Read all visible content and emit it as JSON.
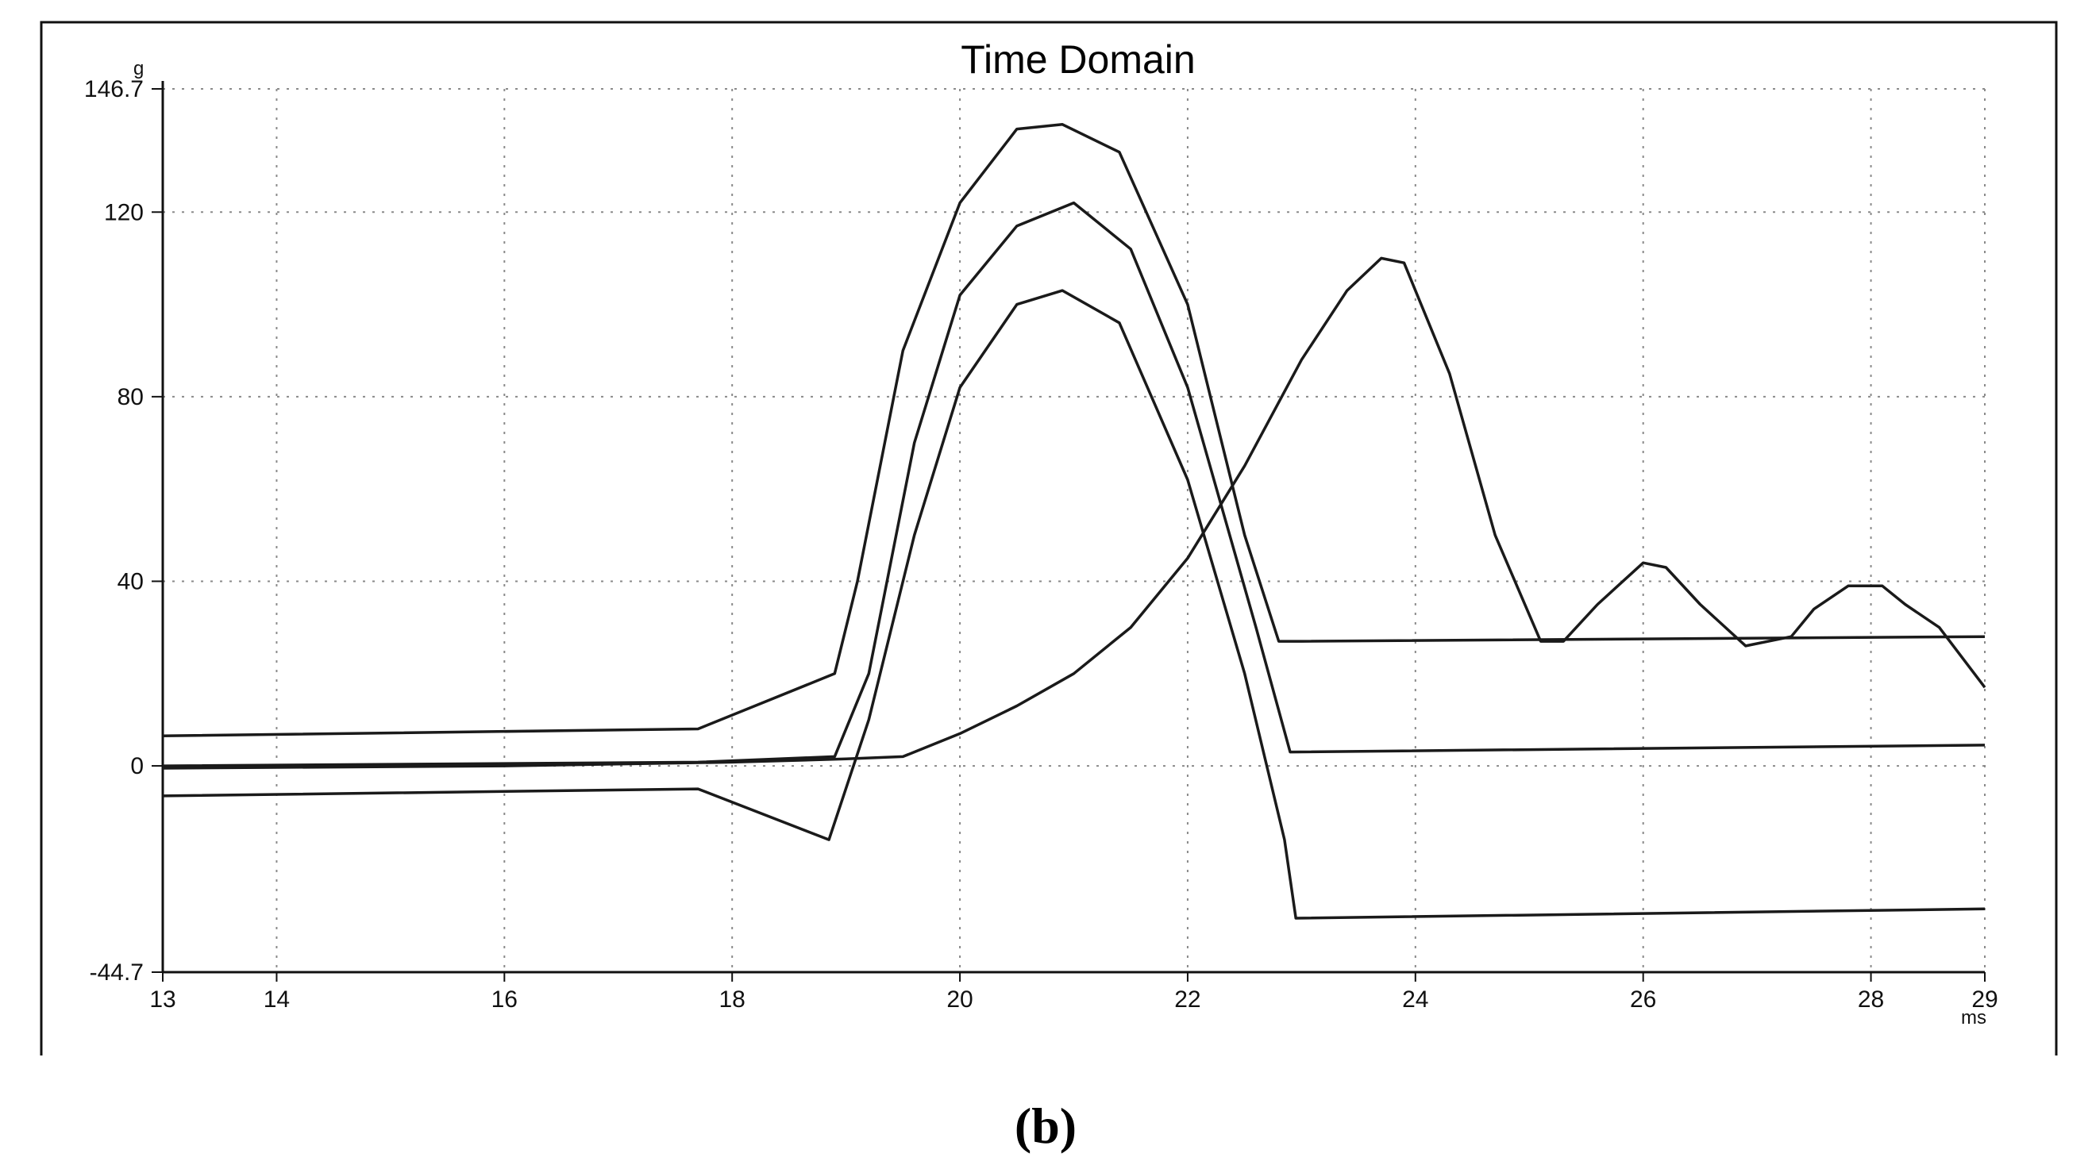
{
  "caption": "(b)",
  "chart_data": {
    "type": "line",
    "title": "Time Domain",
    "ylabel": "g",
    "xlabel": "ms",
    "xlim": [
      13,
      29
    ],
    "ylim": [
      -44.7,
      146.7
    ],
    "x_ticks": [
      13,
      14,
      16,
      18,
      20,
      22,
      24,
      26,
      28,
      29
    ],
    "y_ticks": [
      -44.7,
      0,
      40,
      80,
      120,
      146.7
    ],
    "x_tick_labels": [
      "13",
      "14",
      "16",
      "18",
      "20",
      "22",
      "24",
      "26",
      "28",
      "29"
    ],
    "y_tick_labels": [
      "-44.7",
      "0",
      "40",
      "80",
      "120",
      "146.7"
    ],
    "grid": true,
    "series": [
      {
        "x": [
          13,
          17.7,
          18.9,
          19.1,
          19.5,
          20.0,
          20.5,
          20.9,
          21.4,
          22.0,
          22.5,
          22.8,
          23.0,
          29
        ],
        "y": [
          6.5,
          8,
          20,
          40,
          90,
          122,
          138,
          139,
          133,
          100,
          50,
          27,
          27,
          28
        ]
      },
      {
        "x": [
          13,
          17.7,
          18.9,
          19.2,
          19.6,
          20.0,
          20.5,
          21.0,
          21.5,
          22.0,
          22.6,
          22.9,
          29
        ],
        "y": [
          0,
          0.8,
          2,
          20,
          70,
          102,
          117,
          122,
          112,
          82,
          30,
          3,
          4.5
        ]
      },
      {
        "x": [
          13,
          17.7,
          18.85,
          19.2,
          19.6,
          20.0,
          20.5,
          20.9,
          21.4,
          22.0,
          22.5,
          22.85,
          22.95,
          29
        ],
        "y": [
          -6.5,
          -5,
          -16,
          10,
          50,
          82,
          100,
          103,
          96,
          62,
          20,
          -16,
          -33,
          -31
        ]
      },
      {
        "x": [
          13,
          16,
          18,
          19,
          19.5,
          20.0,
          20.5,
          21.0,
          21.5,
          22.0,
          22.5,
          23.0,
          23.4,
          23.7,
          23.9,
          24.3,
          24.7,
          25.1,
          25.3,
          25.6,
          26.0,
          26.2,
          26.5,
          26.9,
          27.3,
          27.5,
          27.8,
          28.1,
          28.3,
          28.6,
          29
        ],
        "y": [
          -0.5,
          0,
          0.8,
          1.5,
          2,
          7,
          13,
          20,
          30,
          45,
          65,
          88,
          103,
          110,
          109,
          85,
          50,
          27,
          27,
          35,
          44,
          43,
          35,
          26,
          28,
          34,
          39,
          39,
          35,
          30,
          17
        ]
      }
    ]
  }
}
